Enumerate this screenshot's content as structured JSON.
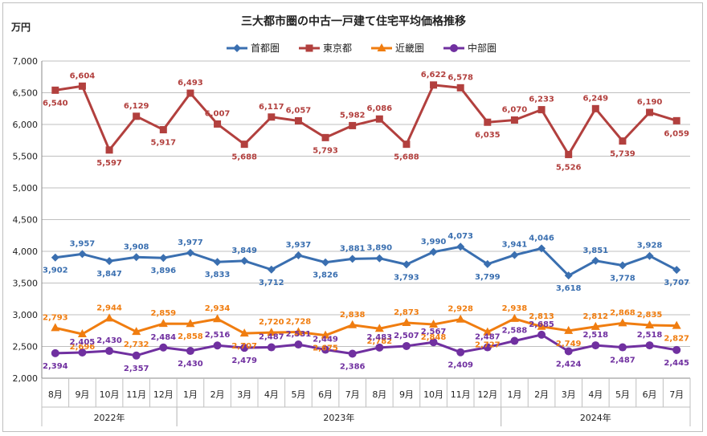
{
  "chart_data": {
    "type": "line",
    "title": "三大都市圏の中古一戸建て住宅平均価格推移",
    "ylabel": "万円",
    "ylim": [
      2000,
      7000
    ],
    "ytick_step": 500,
    "grid": true,
    "legend_position": "top",
    "categories": [
      "8月",
      "9月",
      "10月",
      "11月",
      "12月",
      "1月",
      "2月",
      "3月",
      "4月",
      "5月",
      "6月",
      "7月",
      "8月",
      "9月",
      "10月",
      "11月",
      "12月",
      "1月",
      "2月",
      "3月",
      "4月",
      "5月",
      "6月",
      "7月"
    ],
    "years": [
      {
        "label": "2022年",
        "start": 0,
        "end": 4
      },
      {
        "label": "2023年",
        "start": 5,
        "end": 16
      },
      {
        "label": "2024年",
        "start": 17,
        "end": 23
      }
    ],
    "series": [
      {
        "name": "首都圏",
        "color": "#3a6fb0",
        "marker": "diamond",
        "values": [
          3902,
          3957,
          3847,
          3908,
          3896,
          3977,
          3833,
          3849,
          3712,
          3937,
          3826,
          3881,
          3890,
          3793,
          3990,
          4073,
          3799,
          3941,
          4046,
          3618,
          3851,
          3778,
          3928,
          3707
        ],
        "labels": [
          "3,902",
          "3,957",
          "3,847",
          "3,908",
          "3,896",
          "3,977",
          "3,833",
          "3,849",
          "3,712",
          "3,937",
          "3,826",
          "3,881",
          "3,890",
          "3,793",
          "3,990",
          "4,073",
          "3,799",
          "3,941",
          "4,046",
          "3,618",
          "3,851",
          "3,778",
          "3,928",
          "3,707"
        ]
      },
      {
        "name": "東京都",
        "color": "#b2403e",
        "marker": "square",
        "values": [
          6540,
          6604,
          5597,
          6129,
          5917,
          6493,
          6007,
          5688,
          6117,
          6057,
          5793,
          5982,
          6086,
          5688,
          6622,
          6578,
          6035,
          6070,
          6233,
          5526,
          6249,
          5739,
          6190,
          6059
        ],
        "labels": [
          "6,540",
          "6,604",
          "5,597",
          "6,129",
          "5,917",
          "6,493",
          "6,007",
          "5,688",
          "6,117",
          "6,057",
          "5,793",
          "5,982",
          "6,086",
          "5,688",
          "6,622",
          "6,578",
          "6,035",
          "6,070",
          "6,233",
          "5,526",
          "6,249",
          "5,739",
          "6,190",
          "6,059"
        ]
      },
      {
        "name": "近畿圏",
        "color": "#f07d10",
        "marker": "triangle",
        "values": [
          2793,
          2696,
          2944,
          2732,
          2859,
          2858,
          2934,
          2707,
          2720,
          2728,
          2675,
          2838,
          2782,
          2873,
          2848,
          2928,
          2727,
          2938,
          2813,
          2749,
          2812,
          2868,
          2835,
          2827
        ],
        "labels": [
          "2,793",
          "2,696",
          "2,944",
          "2,732",
          "2,859",
          "2,858",
          "2,934",
          "2,707",
          "2,720",
          "2,728",
          "2,675",
          "2,838",
          "2,782",
          "2,873",
          "2,848",
          "2,928",
          "2,727",
          "2,938",
          "2,813",
          "2,749",
          "2,812",
          "2,868",
          "2,835",
          "2,827"
        ]
      },
      {
        "name": "中部圏",
        "color": "#7030a0",
        "marker": "circle",
        "values": [
          2394,
          2405,
          2430,
          2357,
          2484,
          2430,
          2516,
          2479,
          2487,
          2531,
          2449,
          2386,
          2483,
          2507,
          2567,
          2409,
          2487,
          2588,
          2685,
          2424,
          2518,
          2487,
          2518,
          2445
        ],
        "labels": [
          "2,394",
          "2,405",
          "2,430",
          "2,357",
          "2,484",
          "2,430",
          "2,516",
          "2,479",
          "2,487",
          "2,531",
          "2,449",
          "2,386",
          "2,483",
          "2,507",
          "2,567",
          "2,409",
          "2,487",
          "2,588",
          "2,685",
          "2,424",
          "2,518",
          "2,487",
          "2,518",
          "2,445"
        ]
      }
    ]
  }
}
